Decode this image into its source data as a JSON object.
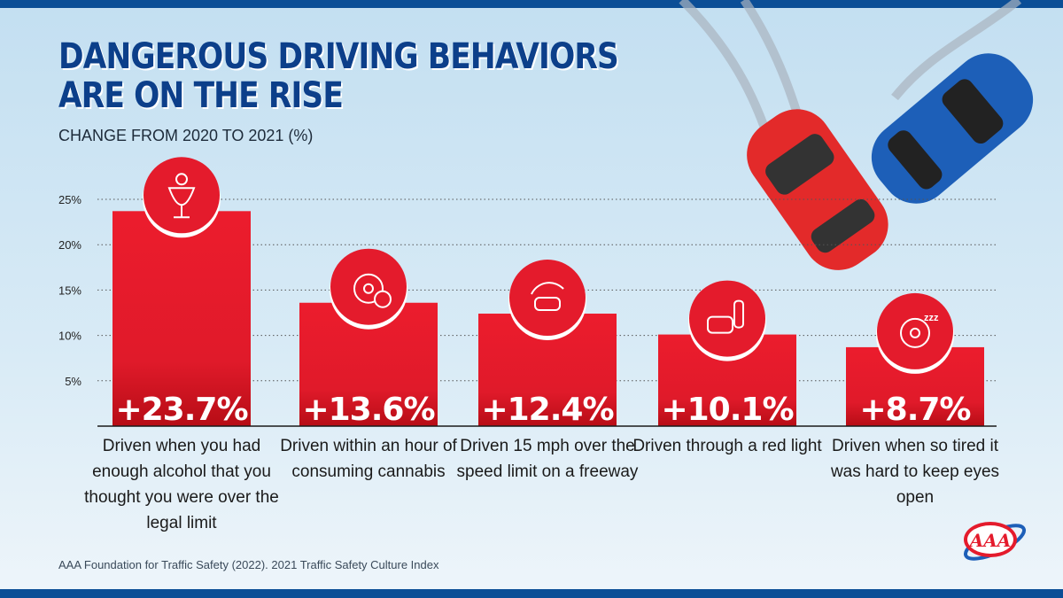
{
  "title_line1": "DANGEROUS DRIVING BEHAVIORS",
  "title_line2": "ARE ON THE RISE",
  "source": "AAA Foundation for Traffic Safety (2022). 2021 Traffic Safety Culture Index",
  "logo_text": "AAA",
  "chart_data": {
    "type": "bar",
    "subtitle": "CHANGE FROM 2020 TO 2021 (%)",
    "categories": [
      "Driven when you had enough alcohol that you thought you were over the legal limit",
      "Driven within an hour of consuming cannabis",
      "Driven 15 mph over the speed limit on a freeway",
      "Driven through a red light",
      "Driven when so tired it was hard to keep eyes open"
    ],
    "values": [
      23.7,
      13.6,
      12.4,
      10.1,
      8.7
    ],
    "data_labels": [
      "+23.7%",
      "+13.6%",
      "+12.4%",
      "+10.1%",
      "+8.7%"
    ],
    "icons": [
      "alcohol-keys-glass-icon",
      "steering-wheel-cannabis-icon",
      "speeding-car-icon",
      "car-traffic-light-icon",
      "steering-wheel-pillow-sleep-icon"
    ],
    "yticks": [
      "5%",
      "10%",
      "15%",
      "20%",
      "25%"
    ],
    "ytick_values": [
      5,
      10,
      15,
      20,
      25
    ],
    "ylim": [
      0,
      25
    ],
    "grid": true,
    "colors": {
      "bar": "#e41b2c",
      "bar_dark": "#b70d16",
      "title": "#0c3f8a"
    }
  }
}
